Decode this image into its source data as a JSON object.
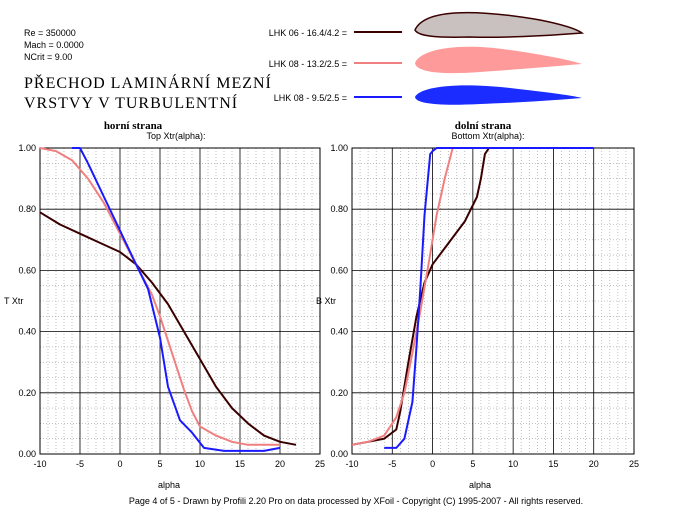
{
  "params": {
    "re": "Re = 350000",
    "mach": "Mach = 0.0000",
    "ncrit": "NCrit = 9.00"
  },
  "main_title": [
    "PŘECHOD  LAMINÁRNÍ  MEZNÍ",
    "VRSTVY  V  TURBULENTNÍ"
  ],
  "legend": [
    {
      "label": "LHK  06  -  16.4/4.2 =",
      "color": "#3a0000",
      "fill": "#c9c0c0"
    },
    {
      "label": "LHK  08  -  13.2/2.5 =",
      "color": "#f08080",
      "fill": "#ff9a9a"
    },
    {
      "label": "LHK  08  -  9.5/2.5 =",
      "color": "#1a1aff",
      "fill": "#1a2cff"
    }
  ],
  "footer": "Page 4 of 5   -   Drawn by Profili 2.20 Pro on data processed by  XFoil - Copyright (C) 1995-2007 - All rights reserved.",
  "chart_data": [
    {
      "type": "line",
      "heading": "horní strana",
      "title": "Top Xtr(alpha):",
      "xlabel": "alpha",
      "ylabel": "T Xtr",
      "xlim": [
        -10,
        25
      ],
      "ylim": [
        0,
        1
      ],
      "xticks": [
        "-10",
        "-5",
        "0",
        "5",
        "10",
        "15",
        "20",
        "25"
      ],
      "yticks": [
        "0.00",
        "0.20",
        "0.40",
        "0.60",
        "0.80",
        "1.00"
      ],
      "series": [
        {
          "name": "LHK  06  -  16.4/4.2",
          "color": "#3a0000",
          "x": [
            -10,
            -7.5,
            -5,
            -2.5,
            0,
            2,
            4,
            6,
            8,
            10,
            12,
            14,
            16,
            18,
            20,
            22
          ],
          "y": [
            0.79,
            0.75,
            0.72,
            0.69,
            0.66,
            0.62,
            0.56,
            0.49,
            0.4,
            0.31,
            0.22,
            0.15,
            0.1,
            0.06,
            0.04,
            0.03
          ]
        },
        {
          "name": "LHK  08  -  13.2/2.5",
          "color": "#f08080",
          "x": [
            -10,
            -8,
            -6,
            -4,
            -2,
            0,
            2,
            4,
            5,
            6,
            7,
            8,
            9,
            10,
            12,
            14,
            16,
            18,
            20
          ],
          "y": [
            1.0,
            0.99,
            0.96,
            0.9,
            0.82,
            0.72,
            0.62,
            0.52,
            0.45,
            0.37,
            0.29,
            0.21,
            0.14,
            0.09,
            0.06,
            0.04,
            0.03,
            0.03,
            0.03
          ]
        },
        {
          "name": "LHK  08  -  9.5/2.5",
          "color": "#1a1aff",
          "x": [
            -6,
            -5,
            -4,
            -2,
            0,
            2,
            3.5,
            5,
            6,
            7.5,
            9,
            10.5,
            13,
            16,
            18,
            20
          ],
          "y": [
            1.0,
            1.0,
            0.95,
            0.84,
            0.73,
            0.62,
            0.54,
            0.38,
            0.22,
            0.11,
            0.07,
            0.02,
            0.01,
            0.01,
            0.01,
            0.02
          ]
        }
      ]
    },
    {
      "type": "line",
      "heading": "dolní strana",
      "title": "Bottom Xtr(alpha):",
      "xlabel": "alpha",
      "ylabel": "B Xtr",
      "xlim": [
        -10,
        25
      ],
      "ylim": [
        0,
        1
      ],
      "xticks": [
        "-10",
        "-5",
        "0",
        "5",
        "10",
        "15",
        "20",
        "25"
      ],
      "yticks": [
        "0.00",
        "0.20",
        "0.40",
        "0.60",
        "0.80",
        "1.00"
      ],
      "series": [
        {
          "name": "LHK  06  -  16.4/4.2",
          "color": "#3a0000",
          "x": [
            -10,
            -8,
            -6,
            -4.5,
            -4,
            -3,
            -2,
            -1,
            0,
            2,
            4,
            5.5,
            6,
            6.5,
            7,
            10,
            20
          ],
          "y": [
            0.03,
            0.04,
            0.05,
            0.08,
            0.14,
            0.3,
            0.45,
            0.56,
            0.62,
            0.69,
            0.76,
            0.84,
            0.9,
            0.98,
            1.0,
            1.0,
            1.0
          ]
        },
        {
          "name": "LHK  08  -  13.2/2.5",
          "color": "#f08080",
          "x": [
            -10,
            -8,
            -6,
            -4.5,
            -3.5,
            -2.5,
            -1.5,
            -0.5,
            0.5,
            1.5,
            2.5,
            4,
            10,
            20
          ],
          "y": [
            0.03,
            0.04,
            0.06,
            0.12,
            0.2,
            0.33,
            0.47,
            0.62,
            0.78,
            0.9,
            1.0,
            1.0,
            1.0,
            1.0
          ]
        },
        {
          "name": "LHK  08  -  9.5/2.5",
          "color": "#1a1aff",
          "x": [
            -6,
            -4.5,
            -3.5,
            -2.5,
            -2,
            -1.5,
            -1,
            -0.3,
            0,
            0.5,
            2,
            20
          ],
          "y": [
            0.02,
            0.02,
            0.05,
            0.17,
            0.35,
            0.55,
            0.78,
            0.98,
            0.99,
            1.0,
            1.0,
            1.0
          ]
        }
      ]
    }
  ]
}
